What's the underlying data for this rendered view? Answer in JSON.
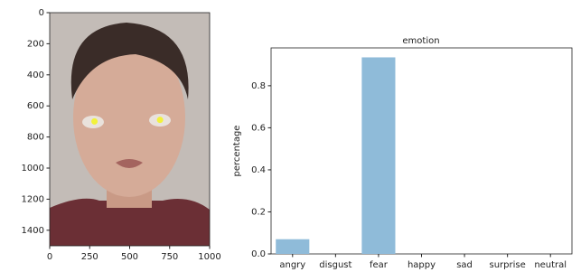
{
  "chart_data": [
    {
      "type": "image",
      "xlim": [
        0,
        1000
      ],
      "xticks": [
        0,
        250,
        500,
        750,
        1000
      ],
      "ylim": [
        1500,
        0
      ],
      "yticks": [
        0,
        200,
        400,
        600,
        800,
        1000,
        1200,
        1400
      ],
      "points": {
        "x": [
          280,
          690
        ],
        "y": [
          700,
          690
        ],
        "color": "#f2f23a"
      }
    },
    {
      "type": "bar",
      "title": "emotion",
      "y_label": "percentage",
      "categories": [
        "angry",
        "disgust",
        "fear",
        "happy",
        "sad",
        "surprise",
        "neutral"
      ],
      "values": [
        0.07,
        0,
        0.935,
        0,
        0,
        0,
        0
      ],
      "color": "#8fbbd9",
      "ylim": [
        0,
        0.98
      ],
      "yticks": [
        {
          "value": 0,
          "label": "0.0"
        },
        0.2,
        0.4,
        0.6,
        0.8
      ]
    }
  ]
}
